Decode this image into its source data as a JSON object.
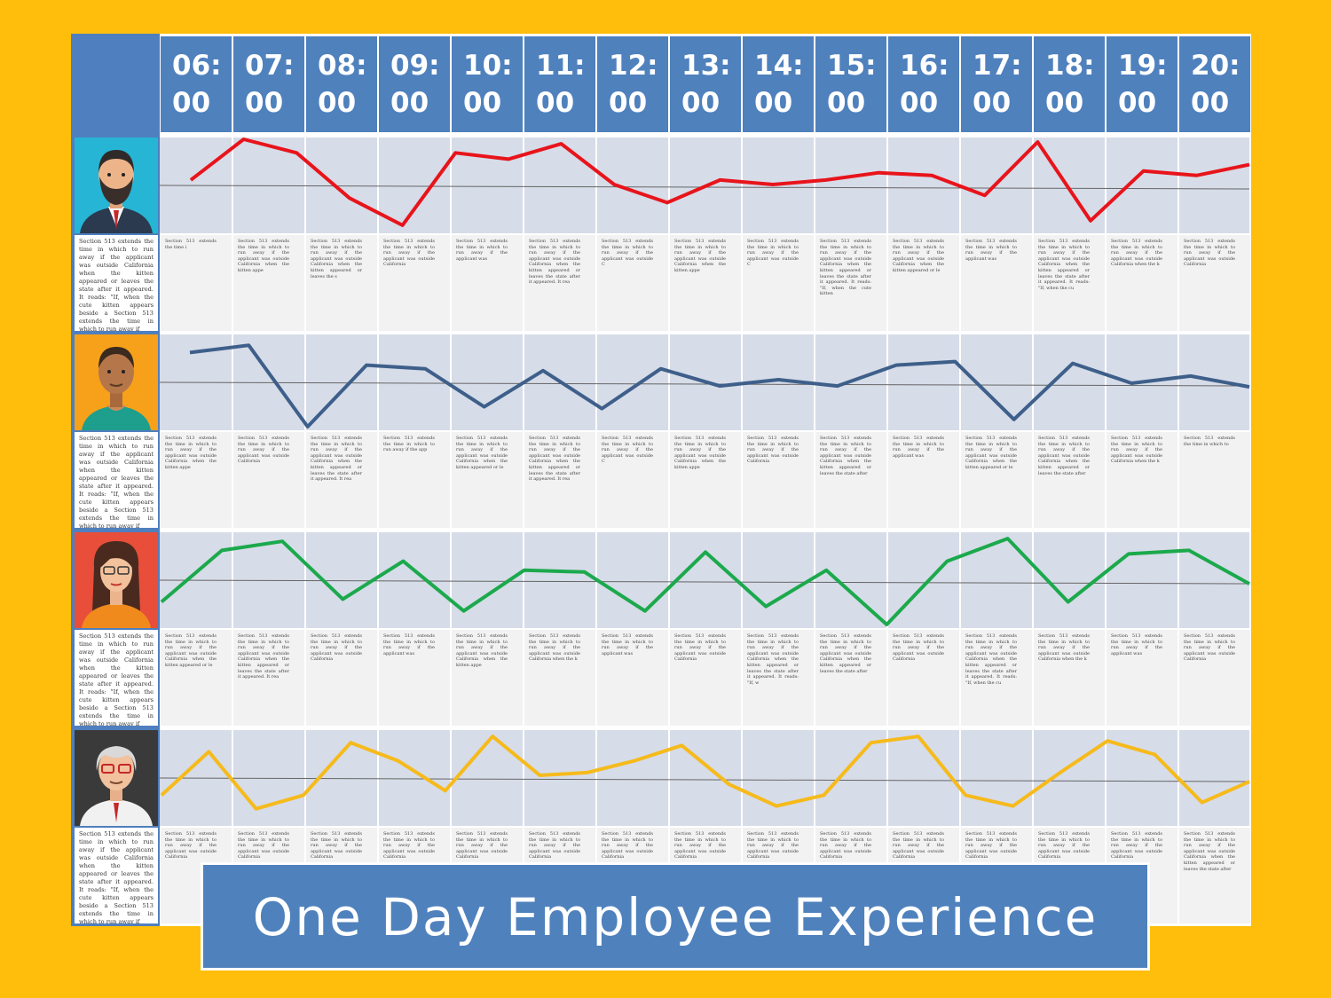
{
  "title": "One Day Employee Experience",
  "hours": [
    {
      "hh": "06:",
      "mm": "00"
    },
    {
      "hh": "07:",
      "mm": "00"
    },
    {
      "hh": "08:",
      "mm": "00"
    },
    {
      "hh": "09:",
      "mm": "00"
    },
    {
      "hh": "10:",
      "mm": "00"
    },
    {
      "hh": "11:",
      "mm": "00"
    },
    {
      "hh": "12:",
      "mm": "00"
    },
    {
      "hh": "13:",
      "mm": "00"
    },
    {
      "hh": "14:",
      "mm": "00"
    },
    {
      "hh": "15:",
      "mm": "00"
    },
    {
      "hh": "16:",
      "mm": "00"
    },
    {
      "hh": "17:",
      "mm": "00"
    },
    {
      "hh": "18:",
      "mm": "00"
    },
    {
      "hh": "19:",
      "mm": "00"
    },
    {
      "hh": "20:",
      "mm": "00"
    }
  ],
  "filler_text": "Section 513 extends the time in which to run away if the applicant was outside California when the kitten appeared or leaves the state after it appeared. It reads: \"If, when the cute kitten appears beside a",
  "employees": [
    {
      "avatar": "bearded-man-avatar",
      "line_color": "#E8141B",
      "mood": [
        0.55,
        1.0,
        0.85,
        0.35,
        0.05,
        0.85,
        0.78,
        0.95,
        0.5,
        0.3,
        0.55,
        0.5,
        0.55,
        0.63,
        0.6,
        0.38,
        0.97,
        0.1,
        0.65,
        0.6,
        0.72
      ]
    },
    {
      "avatar": "man-orange-avatar",
      "line_color": "#3E5F8A",
      "mood": [
        0.82,
        0.9,
        0.0,
        0.68,
        0.64,
        0.22,
        0.62,
        0.2,
        0.64,
        0.45,
        0.52,
        0.45,
        0.68,
        0.72,
        0.08,
        0.7,
        0.48,
        0.56,
        0.44
      ]
    },
    {
      "avatar": "woman-red-avatar",
      "line_color": "#1BA94C",
      "mood": [
        0.25,
        0.82,
        0.92,
        0.28,
        0.7,
        0.15,
        0.6,
        0.58,
        0.15,
        0.8,
        0.2,
        0.6,
        0.0,
        0.7,
        0.95,
        0.25,
        0.78,
        0.82,
        0.45
      ]
    },
    {
      "avatar": "senior-man-avatar",
      "line_color": "#F6BA1B",
      "mood": [
        0.3,
        0.78,
        0.15,
        0.3,
        0.88,
        0.68,
        0.35,
        0.95,
        0.52,
        0.55,
        0.68,
        0.85,
        0.42,
        0.18,
        0.3,
        0.88,
        0.95,
        0.3,
        0.18,
        0.55,
        0.9,
        0.75,
        0.22,
        0.45
      ]
    }
  ],
  "cell_lengths": [
    [
      30,
      110,
      130,
      90,
      70,
      160,
      80,
      110,
      80,
      190,
      120,
      70,
      180,
      100,
      90
    ],
    [
      110,
      90,
      160,
      60,
      120,
      160,
      80,
      110,
      90,
      140,
      70,
      120,
      140,
      100,
      40
    ],
    [
      120,
      160,
      90,
      70,
      110,
      100,
      70,
      90,
      170,
      140,
      90,
      180,
      100,
      70,
      90
    ],
    [
      90,
      90,
      90,
      90,
      90,
      90,
      90,
      90,
      90,
      90,
      90,
      90,
      90,
      90,
      140
    ]
  ]
}
